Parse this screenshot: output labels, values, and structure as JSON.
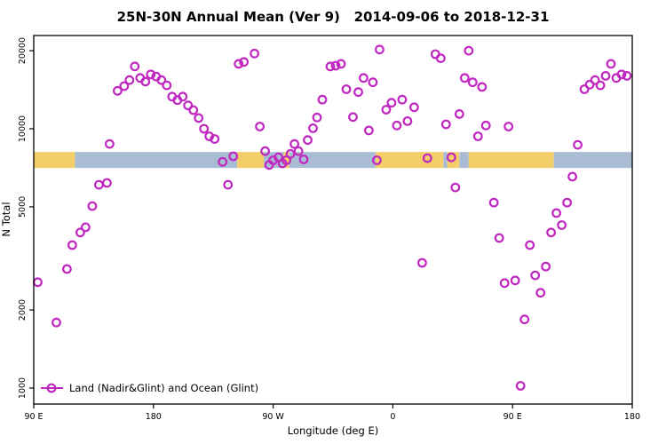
{
  "colors": {
    "point": "#c026c0",
    "land": "#f4ce69",
    "ocean": "#a9bcd4",
    "axis": "#000000"
  },
  "legend": {
    "label": "Land (Nadir&Glint) and Ocean (Glint)"
  },
  "chart_data": {
    "type": "scatter",
    "title": "25N-30N Annual Mean (Ver 9)   2014-09-06 to 2018-12-31",
    "xlabel": "Longitude (deg E)",
    "ylabel": "N Total",
    "x_axis": {
      "range": [
        90,
        540
      ],
      "ticks": [
        90,
        180,
        270,
        360,
        450,
        540
      ],
      "tick_labels": [
        "90 E",
        "180",
        "90 W",
        "0",
        "90 E",
        "180"
      ],
      "note": "longitude unwrapped eastward starting at 90E"
    },
    "y_axis": {
      "scale": "log",
      "ticks": [
        1000,
        2000,
        5000,
        10000,
        20000
      ],
      "tick_labels": [
        "1000",
        "2000",
        "5000",
        "10000",
        "20000"
      ],
      "range": [
        950,
        21500
      ]
    },
    "band": {
      "description": "land/ocean surface-type strip drawn across the plot",
      "value_center": 7580,
      "segments": [
        {
          "from": 90,
          "to": 121,
          "surface": "land"
        },
        {
          "from": 121,
          "to": 243,
          "surface": "ocean"
        },
        {
          "from": 243,
          "to": 263,
          "surface": "land"
        },
        {
          "from": 263,
          "to": 278,
          "surface": "ocean"
        },
        {
          "from": 278,
          "to": 282,
          "surface": "land"
        },
        {
          "from": 282,
          "to": 347,
          "surface": "ocean"
        },
        {
          "from": 347,
          "to": 398,
          "surface": "land"
        },
        {
          "from": 398,
          "to": 401,
          "surface": "ocean"
        },
        {
          "from": 401,
          "to": 410,
          "surface": "land"
        },
        {
          "from": 410,
          "to": 417,
          "surface": "ocean"
        },
        {
          "from": 417,
          "to": 481,
          "surface": "land"
        },
        {
          "from": 481,
          "to": 540,
          "surface": "ocean"
        }
      ]
    },
    "points": [
      [
        93,
        2560
      ],
      [
        107,
        1790
      ],
      [
        115,
        2880
      ],
      [
        119,
        3560
      ],
      [
        125,
        3980
      ],
      [
        129,
        4170
      ],
      [
        134,
        5030
      ],
      [
        139,
        6080
      ],
      [
        145,
        6180
      ],
      [
        147,
        8740
      ],
      [
        153,
        14000
      ],
      [
        158,
        14600
      ],
      [
        162,
        15400
      ],
      [
        166,
        17400
      ],
      [
        170,
        15700
      ],
      [
        174,
        15200
      ],
      [
        178,
        16200
      ],
      [
        182,
        15900
      ],
      [
        186,
        15400
      ],
      [
        190,
        14700
      ],
      [
        194,
        13300
      ],
      [
        198,
        12900
      ],
      [
        202,
        13300
      ],
      [
        206,
        12300
      ],
      [
        210,
        11800
      ],
      [
        214,
        11000
      ],
      [
        218,
        10000
      ],
      [
        222,
        9350
      ],
      [
        226,
        9130
      ],
      [
        232,
        7450
      ],
      [
        236,
        6080
      ],
      [
        240,
        7830
      ],
      [
        244,
        17800
      ],
      [
        248,
        18100
      ],
      [
        256,
        19500
      ],
      [
        260,
        10200
      ],
      [
        264,
        8200
      ],
      [
        267,
        7250
      ],
      [
        270,
        7560
      ],
      [
        274,
        7760
      ],
      [
        277,
        7350
      ],
      [
        280,
        7560
      ],
      [
        283,
        8000
      ],
      [
        286,
        8730
      ],
      [
        289,
        8200
      ],
      [
        293,
        7620
      ],
      [
        296,
        9050
      ],
      [
        300,
        10050
      ],
      [
        303,
        11050
      ],
      [
        307,
        12950
      ],
      [
        313,
        17400
      ],
      [
        317,
        17500
      ],
      [
        321,
        17800
      ],
      [
        325,
        14200
      ],
      [
        330,
        11100
      ],
      [
        334,
        13850
      ],
      [
        338,
        15700
      ],
      [
        342,
        9850
      ],
      [
        345,
        15100
      ],
      [
        348,
        7560
      ],
      [
        350,
        20200
      ],
      [
        355,
        11850
      ],
      [
        359,
        12600
      ],
      [
        363,
        10300
      ],
      [
        367,
        12950
      ],
      [
        371,
        10700
      ],
      [
        376,
        12100
      ],
      [
        382,
        3040
      ],
      [
        386,
        7700
      ],
      [
        392,
        19400
      ],
      [
        396,
        18700
      ],
      [
        400,
        10400
      ],
      [
        404,
        7760
      ],
      [
        407,
        5940
      ],
      [
        410,
        11400
      ],
      [
        414,
        15700
      ],
      [
        417,
        20000
      ],
      [
        420,
        15100
      ],
      [
        424,
        9350
      ],
      [
        427,
        14500
      ],
      [
        430,
        10300
      ],
      [
        436,
        5190
      ],
      [
        440,
        3790
      ],
      [
        444,
        2540
      ],
      [
        447,
        10200
      ],
      [
        452,
        2600
      ],
      [
        456,
        1020
      ],
      [
        459,
        1840
      ],
      [
        463,
        3560
      ],
      [
        467,
        2720
      ],
      [
        471,
        2330
      ],
      [
        475,
        2940
      ],
      [
        479,
        3980
      ],
      [
        483,
        4730
      ],
      [
        487,
        4250
      ],
      [
        491,
        5190
      ],
      [
        495,
        6540
      ],
      [
        499,
        8670
      ],
      [
        504,
        14200
      ],
      [
        508,
        14800
      ],
      [
        512,
        15400
      ],
      [
        516,
        14700
      ],
      [
        520,
        16000
      ],
      [
        524,
        17800
      ],
      [
        528,
        15700
      ],
      [
        532,
        16200
      ],
      [
        536,
        16000
      ]
    ]
  }
}
